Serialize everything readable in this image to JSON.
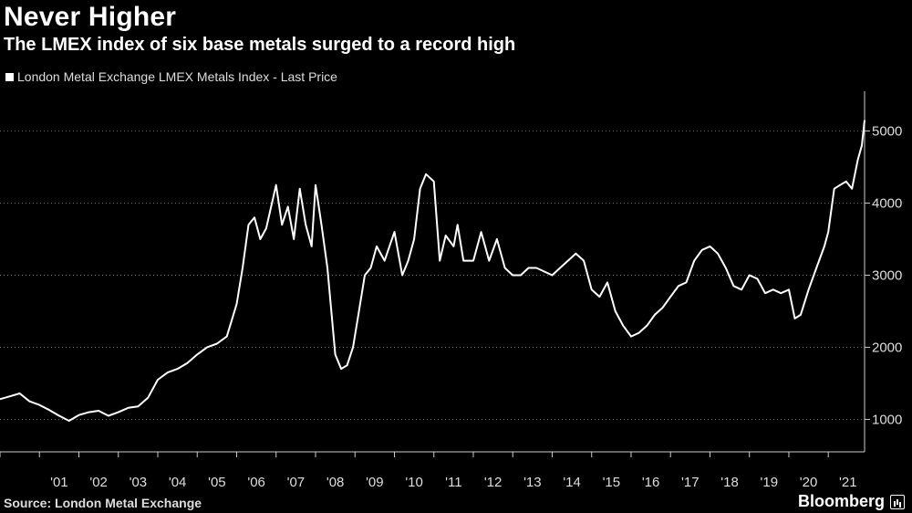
{
  "header": {
    "title": "Never Higher",
    "subtitle": "The LMEX index of six base metals surged to a record high"
  },
  "footer": {
    "source": "Source: London Metal Exchange",
    "brand": "Bloomberg"
  },
  "colors": {
    "background": "#000000",
    "line": "#ffffff",
    "grid": "#666666"
  },
  "chart_data": {
    "type": "line",
    "title": "Never Higher",
    "subtitle": "The LMEX index of six base metals surged to a record high",
    "legend": [
      "London Metal Exchange LMEX Metals Index - Last Price"
    ],
    "legend_position": "top-left",
    "y_axis_position": "right",
    "xlabel": "",
    "ylabel": "",
    "ylim": [
      550,
      5550
    ],
    "xlim": [
      2000.0,
      2021.92
    ],
    "grid": "horizontal dotted",
    "yticks": [
      1000,
      2000,
      3000,
      4000,
      5000
    ],
    "xtick_labels": [
      "'01",
      "'02",
      "'03",
      "'04",
      "'05",
      "'06",
      "'07",
      "'08",
      "'09",
      "'10",
      "'11",
      "'12",
      "'13",
      "'14",
      "'15",
      "'16",
      "'17",
      "'18",
      "'19",
      "'20",
      "'21"
    ],
    "xtick_years": [
      2001,
      2002,
      2003,
      2004,
      2005,
      2006,
      2007,
      2008,
      2009,
      2010,
      2011,
      2012,
      2013,
      2014,
      2015,
      2016,
      2017,
      2018,
      2019,
      2020,
      2021
    ],
    "series": [
      {
        "name": "London Metal Exchange LMEX Metals Index - Last Price",
        "x": [
          2000.0,
          2000.25,
          2000.5,
          2000.75,
          2001.0,
          2001.25,
          2001.5,
          2001.75,
          2002.0,
          2002.25,
          2002.5,
          2002.75,
          2003.0,
          2003.25,
          2003.5,
          2003.75,
          2004.0,
          2004.25,
          2004.5,
          2004.75,
          2005.0,
          2005.25,
          2005.5,
          2005.75,
          2006.0,
          2006.15,
          2006.3,
          2006.45,
          2006.6,
          2006.75,
          2007.0,
          2007.15,
          2007.3,
          2007.45,
          2007.6,
          2007.75,
          2007.9,
          2008.0,
          2008.15,
          2008.3,
          2008.5,
          2008.65,
          2008.8,
          2008.95,
          2009.1,
          2009.25,
          2009.4,
          2009.55,
          2009.75,
          2010.0,
          2010.2,
          2010.35,
          2010.5,
          2010.65,
          2010.8,
          2011.0,
          2011.15,
          2011.3,
          2011.5,
          2011.6,
          2011.75,
          2012.0,
          2012.2,
          2012.4,
          2012.6,
          2012.8,
          2013.0,
          2013.2,
          2013.4,
          2013.6,
          2013.8,
          2014.0,
          2014.2,
          2014.4,
          2014.6,
          2014.8,
          2015.0,
          2015.2,
          2015.4,
          2015.6,
          2015.8,
          2016.0,
          2016.2,
          2016.4,
          2016.6,
          2016.8,
          2017.0,
          2017.2,
          2017.4,
          2017.6,
          2017.8,
          2018.0,
          2018.2,
          2018.4,
          2018.6,
          2018.8,
          2019.0,
          2019.2,
          2019.4,
          2019.6,
          2019.8,
          2020.0,
          2020.15,
          2020.3,
          2020.5,
          2020.7,
          2020.9,
          2021.0,
          2021.15,
          2021.3,
          2021.45,
          2021.6,
          2021.75,
          2021.85,
          2021.92
        ],
        "values": [
          1280,
          1320,
          1360,
          1250,
          1200,
          1130,
          1050,
          980,
          1060,
          1100,
          1120,
          1050,
          1100,
          1160,
          1180,
          1300,
          1550,
          1650,
          1700,
          1780,
          1900,
          2000,
          2050,
          2150,
          2600,
          3100,
          3700,
          3800,
          3500,
          3650,
          4250,
          3700,
          3950,
          3500,
          4200,
          3700,
          3400,
          4250,
          3700,
          3100,
          1900,
          1700,
          1750,
          2000,
          2500,
          3000,
          3100,
          3400,
          3200,
          3600,
          3000,
          3200,
          3500,
          4200,
          4400,
          4300,
          3200,
          3550,
          3400,
          3700,
          3200,
          3200,
          3600,
          3200,
          3500,
          3100,
          3000,
          3000,
          3100,
          3100,
          3050,
          3000,
          3100,
          3200,
          3300,
          3200,
          2800,
          2700,
          2900,
          2500,
          2300,
          2150,
          2200,
          2300,
          2450,
          2550,
          2700,
          2850,
          2900,
          3200,
          3350,
          3400,
          3300,
          3100,
          2850,
          2800,
          3000,
          2950,
          2750,
          2800,
          2750,
          2800,
          2400,
          2450,
          2800,
          3100,
          3400,
          3600,
          4200,
          4250,
          4300,
          4200,
          4600,
          4800,
          5150
        ]
      }
    ]
  }
}
